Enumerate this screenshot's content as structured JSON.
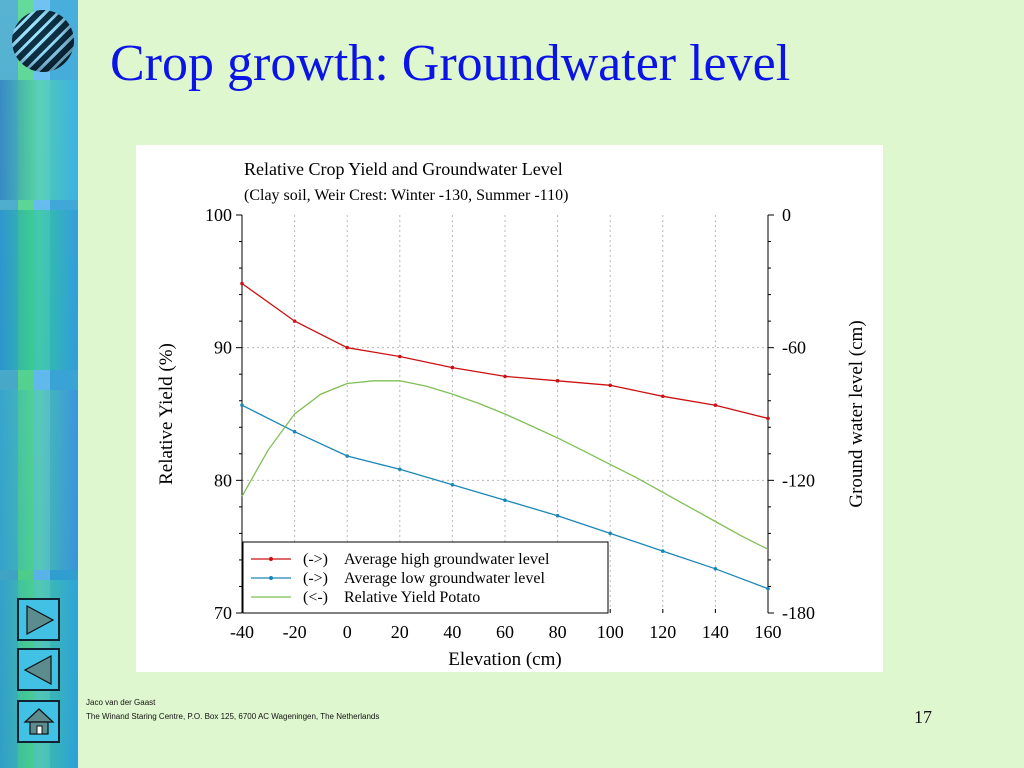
{
  "slide": {
    "title": "Crop growth: Groundwater level",
    "page_number": "17",
    "footer_author": "Jaco van der Gaast",
    "footer_org": "The Winand Staring Centre, P.O. Box 125, 6700 AC Wageningen, The Netherlands"
  },
  "nav": {
    "next_icon": "play-right-icon",
    "prev_icon": "play-left-icon",
    "home_icon": "home-icon"
  },
  "chart_data": {
    "type": "line",
    "title": "Relative Crop Yield and Groundwater Level",
    "subtitle": "(Clay soil, Weir Crest: Winter -130, Summer -110)",
    "xlabel": "Elevation (cm)",
    "ylabel": "Relative Yield (%)",
    "y2label": "Ground water level (cm)",
    "xlim": [
      -40,
      160
    ],
    "ylim": [
      70,
      100
    ],
    "y2lim": [
      -180,
      0
    ],
    "xticks": [
      "-40",
      "-20",
      "0",
      "20",
      "40",
      "60",
      "80",
      "100",
      "120",
      "140",
      "160"
    ],
    "yticks": [
      "70",
      "80",
      "90",
      "100"
    ],
    "y2ticks": [
      "-180",
      "-120",
      "-60",
      "0"
    ],
    "grid": true,
    "legend_position": "bottom-left",
    "series": [
      {
        "name": "Average high groundwater level",
        "prefix": "(->)",
        "axis": "right",
        "color": "#cc1111",
        "markers": true,
        "x": [
          -40,
          -20,
          0,
          20,
          40,
          60,
          80,
          100,
          120,
          140,
          160
        ],
        "y": [
          -31,
          -48,
          -60,
          -64,
          -69,
          -73,
          -75,
          -77,
          -82,
          -86,
          -92
        ]
      },
      {
        "name": "Average low groundwater level",
        "prefix": "(->)",
        "axis": "right",
        "color": "#1a86b8",
        "markers": true,
        "x": [
          -40,
          -20,
          0,
          20,
          40,
          60,
          80,
          100,
          120,
          140,
          160
        ],
        "y": [
          -86,
          -98,
          -109,
          -115,
          -122,
          -129,
          -136,
          -144,
          -152,
          -160,
          -169
        ]
      },
      {
        "name": "Relative Yield Potato",
        "prefix": "(<-)",
        "axis": "left",
        "color": "#7fbf55",
        "markers": false,
        "x": [
          -40,
          -30,
          -20,
          -10,
          0,
          10,
          20,
          30,
          40,
          50,
          60,
          70,
          80,
          90,
          100,
          110,
          120,
          130,
          140,
          150,
          160
        ],
        "y": [
          78.8,
          82.3,
          85.0,
          86.5,
          87.3,
          87.5,
          87.5,
          87.1,
          86.5,
          85.8,
          85.0,
          84.1,
          83.2,
          82.2,
          81.2,
          80.2,
          79.1,
          78.0,
          76.9,
          75.8,
          74.8
        ]
      }
    ]
  }
}
